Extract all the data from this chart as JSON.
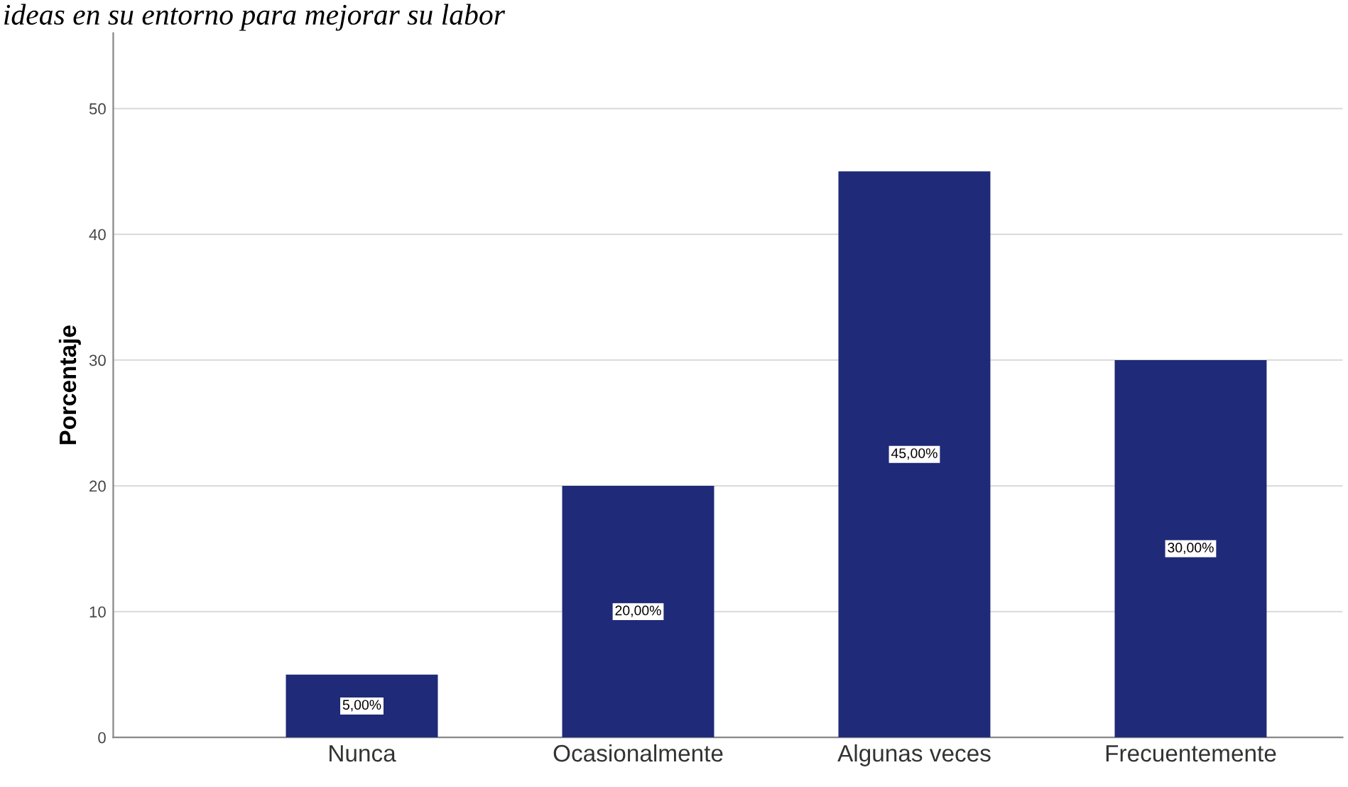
{
  "chart_data": {
    "type": "bar",
    "title": "ideas en su entorno para mejorar su labor",
    "ylabel": "Porcentaje",
    "categories": [
      "Nunca",
      "Ocasionalmente",
      "Algunas veces",
      "Frecuentemente"
    ],
    "values": [
      5,
      20,
      45,
      30
    ],
    "color": "#1f2a78",
    "value_labels": [
      "5,00%",
      "20,00%",
      "45,00%",
      "30,00%"
    ],
    "ylim": [
      0,
      56
    ],
    "yticks": [
      0,
      10,
      20,
      30,
      40,
      50
    ],
    "grid": "y"
  }
}
